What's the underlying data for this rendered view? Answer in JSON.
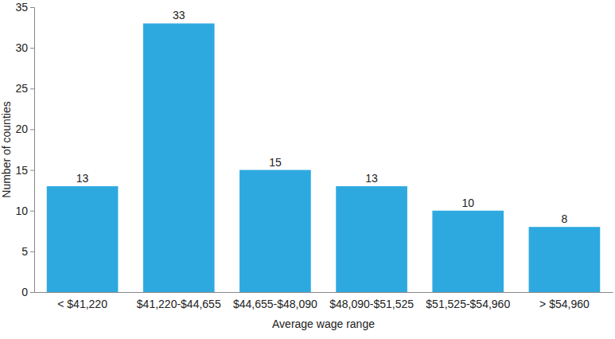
{
  "chart_data": {
    "type": "bar",
    "x_label": "Average wage range",
    "y_label": "Number of counties",
    "categories": [
      "< $41,220",
      "$41,220-$44,655",
      "$44,655-$48,090",
      "$48,090-$51,525",
      "$51,525-$54,960",
      "> $54,960"
    ],
    "values": [
      13,
      33,
      15,
      13,
      10,
      8
    ],
    "color": "#2ea9e0",
    "ylim": [
      0,
      35
    ],
    "yticks": [
      0,
      5,
      10,
      15,
      20,
      25,
      30,
      35
    ],
    "grid": false,
    "data_labels": true
  }
}
